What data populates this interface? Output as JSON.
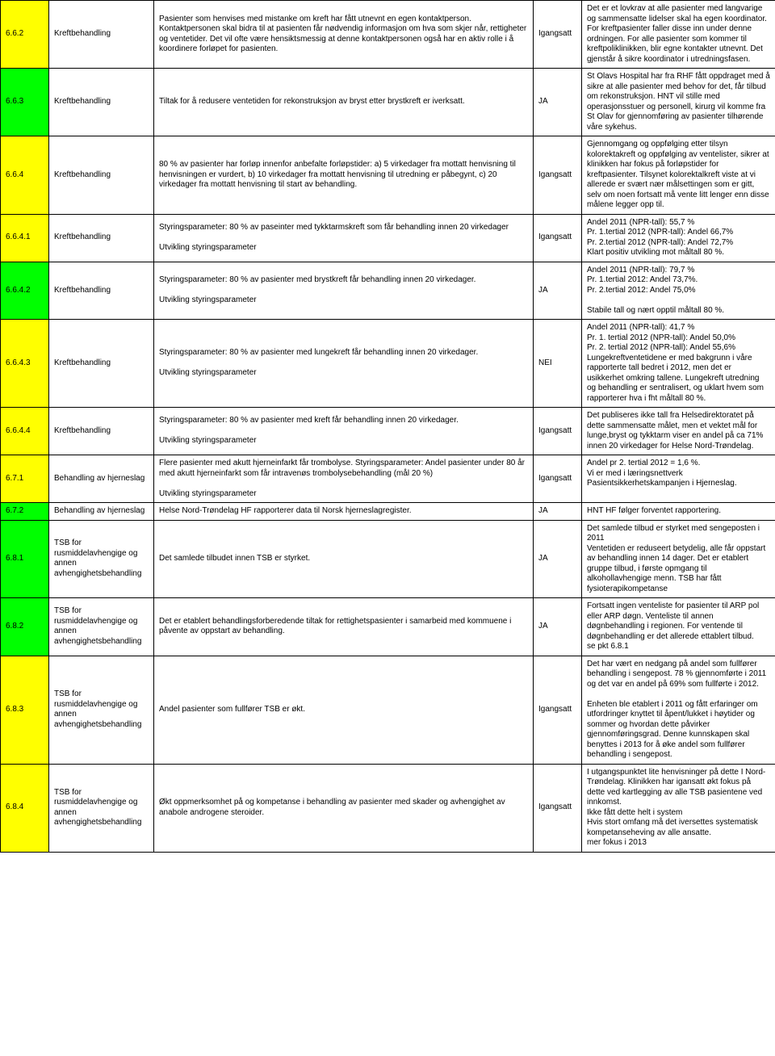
{
  "colors": {
    "yellow": "#ffff00",
    "green": "#00ff00",
    "border": "#000000",
    "background": "#ffffff"
  },
  "rows": [
    {
      "id": "6.6.2",
      "id_bg": "yellow",
      "category": "Kreftbehandling",
      "description": "Pasienter som henvises med mistanke om kreft har fått utnevnt en egen kontaktperson. Kontaktpersonen skal bidra til at pasienten får nødvendig informasjon om hva som skjer når, rettigheter og ventetider. Det vil ofte være hensiktsmessig at denne kontaktpersonen også har en aktiv rolle i å koordinere forløpet for pasienten.",
      "status": "Igangsatt",
      "comment": "Det er et lovkrav at alle pasienter med langvarige og sammensatte lidelser skal ha egen koordinator. For kreftpasienter faller disse inn under denne ordningen. For alle pasienter som kommer til kreftpoliklinikken, blir egne kontakter utnevnt. Det gjenstår å sikre koordinator i utredningsfasen."
    },
    {
      "id": "6.6.3",
      "id_bg": "green",
      "category": "Kreftbehandling",
      "description": "Tiltak for å redusere ventetiden for rekonstruksjon av bryst etter brystkreft er iverksatt.",
      "status": "JA",
      "comment": "St Olavs Hospital har fra RHF fått oppdraget med å sikre at alle pasienter med behov for det, får tilbud om rekonstruksjon. HNT vil stille med operasjonsstuer og personell, kirurg vil komme fra St Olav for gjennomføring av pasienter tilhørende våre sykehus."
    },
    {
      "id": "6.6.4",
      "id_bg": "yellow",
      "category": "Kreftbehandling",
      "description": "80 % av pasienter har forløp innenfor anbefalte forløpstider: a) 5 virkedager fra mottatt henvisning til henvisningen er vurdert, b) 10 virkedager fra mottatt henvisning til utredning er påbegynt, c) 20 virkedager fra mottatt henvisning til start av behandling.",
      "status": "Igangsatt",
      "comment": "Gjennomgang og oppfølging etter tilsyn kolorektakreft og oppfølging av ventelister, sikrer at klinikken har fokus på forløpstider for kreftpasienter. Tilsynet kolorektalkreft viste at vi allerede er svært nær målsettingen som er gitt, selv om noen fortsatt må vente litt lenger enn disse målene legger opp til."
    },
    {
      "id": "6.6.4.1",
      "id_bg": "yellow",
      "category": "Kreftbehandling",
      "description": "Styringsparameter: 80 % av paseinter med tykktarmskreft som får behandling innen 20 virkedager\n\nUtvikling styringsparameter",
      "status": "Igangsatt",
      "comment": "Andel 2011 (NPR-tall): 55,7 %\nPr. 1.tertial 2012 (NPR-tall): Andel 66,7%\nPr. 2.tertial 2012 (NPR-tall): Andel 72,7%\nKlart positiv utvikling mot måltall 80 %."
    },
    {
      "id": "6.6.4.2",
      "id_bg": "green",
      "category": "Kreftbehandling",
      "description": "Styringsparameter: 80 % av pasienter med brystkreft får behandling innen 20 virkedager.\n\nUtvikling styringsparameter",
      "status": "JA",
      "comment": "Andel 2011 (NPR-tall): 79,7 %\nPr. 1.tertial 2012: Andel 73,7%.\nPr. 2.tertial 2012: Andel 75,0%\n\nStabile tall og nært opptil måltall 80 %."
    },
    {
      "id": "6.6.4.3",
      "id_bg": "yellow",
      "category": "Kreftbehandling",
      "description": "Styringsparameter: 80 % av pasienter med lungekreft får behandling innen 20 virkedager.\n\nUtvikling styringsparameter",
      "status": "NEI",
      "comment": "Andel 2011 (NPR-tall): 41,7 %\nPr. 1. tertial 2012 (NPR-tall): Andel 50,0%\nPr. 2. tertial 2012 (NPR-tall): Andel 55,6%\nLungekreftventetidene er med bakgrunn i våre rapporterte tall bedret i 2012, men det er usikkerhet omkring tallene. Lungekreft utredning og behandling er sentralisert, og uklart hvem som rapporterer hva i fht måltall 80 %."
    },
    {
      "id": "6.6.4.4",
      "id_bg": "yellow",
      "category": "Kreftbehandling",
      "description": "Styringsparameter: 80 % av pasienter med kreft får behandling innen 20 virkedager.\n\nUtvikling styringsparameter",
      "status": "Igangsatt",
      "comment": "Det publiseres ikke tall fra Helsedirektoratet på dette sammensatte målet, men et vektet mål for lunge,bryst og tykktarm viser en andel på ca 71% innen 20 virkedager for Helse Nord-Trøndelag."
    },
    {
      "id": "6.7.1",
      "id_bg": "yellow",
      "category": "Behandling av hjerneslag",
      "description": "Flere pasienter med akutt hjerneinfarkt får trombolyse. Styringsparameter: Andel pasienter under 80 år med akutt hjerneinfarkt som får intravenøs trombolysebehandling (mål 20 %)\n\nUtvikling styringsparameter",
      "status": "Igangsatt",
      "comment": "Andel pr 2. tertial 2012 = 1,6 %.\nVi er med i læringsnettverk Pasientsikkerhetskampanjen i Hjerneslag."
    },
    {
      "id": "6.7.2",
      "id_bg": "green",
      "category": "Behandling av hjerneslag",
      "description": "Helse Nord-Trøndelag HF rapporterer data til Norsk hjerneslagregister.",
      "status": "JA",
      "comment": "HNT HF følger forventet rapportering."
    },
    {
      "id": "6.8.1",
      "id_bg": "green",
      "category": "TSB for rusmiddelavhengige og annen avhengighetsbehandling",
      "description": "Det samlede tilbudet innen TSB er styrket.",
      "status": "JA",
      "comment": "Det samlede tilbud er styrket med sengeposten i 2011\nVentetiden er reduseert betydelig, alle får oppstart av behandling innen 14 dager. Det er etablert gruppe tilbud, i første opmgang til alkohollavhengige menn. TSB har fått fysioterapikompetanse"
    },
    {
      "id": "6.8.2",
      "id_bg": "green",
      "category": "TSB for rusmiddelavhengige og annen avhengighetsbehandling",
      "description": "Det er etablert behandlingsforberedende tiltak for rettighetspasienter i samarbeid med kommuene i påvente av oppstart av behandling.",
      "status": "JA",
      "comment": "Fortsatt ingen venteliste for pasienter til ARP pol eller ARP døgn. Venteliste til annen døgnbehandling i regionen. For ventende til døgnbehandling er det allerede ettablert tilbud.\nse pkt 6.8.1"
    },
    {
      "id": "6.8.3",
      "id_bg": "yellow",
      "category": "TSB for rusmiddelavhengige og annen avhengighetsbehandling",
      "description": "Andel pasienter som fullfører TSB er økt.",
      "status": "Igangsatt",
      "comment": "Det har vært en nedgang på andel som fullfører behandling i sengepost. 78 % gjennomførte i 2011 og det var en andel på 69% som fullførte i 2012.\n\nEnheten ble etablert i 2011 og fått erfaringer om utfordringer knyttet til åpent/lukket i høytider og sommer og hvordan dette påvirker gjennomføringsgrad. Denne kunnskapen skal benyttes i 2013 for å øke andel som fullfører behandling i sengepost."
    },
    {
      "id": "6.8.4",
      "id_bg": "yellow",
      "category": "TSB for rusmiddelavhengige og annen avhengighetsbehandling",
      "description": "Økt oppmerksomhet på og kompetanse i behandling av pasienter med skader og avhengighet av anabole androgene steroider.",
      "status": "Igangsatt",
      "comment": "I utgangspunktet lite henvisninger på dette I Nord-Trøndelag. Klinikken har igansatt økt fokus på dette ved kartlegging av alle TSB pasientene ved innkomst.\nIkke fått dette helt i system\nHvis stort omfang må det iversettes systematisk kompetanseheving av alle ansatte.\nmer fokus i 2013"
    }
  ]
}
